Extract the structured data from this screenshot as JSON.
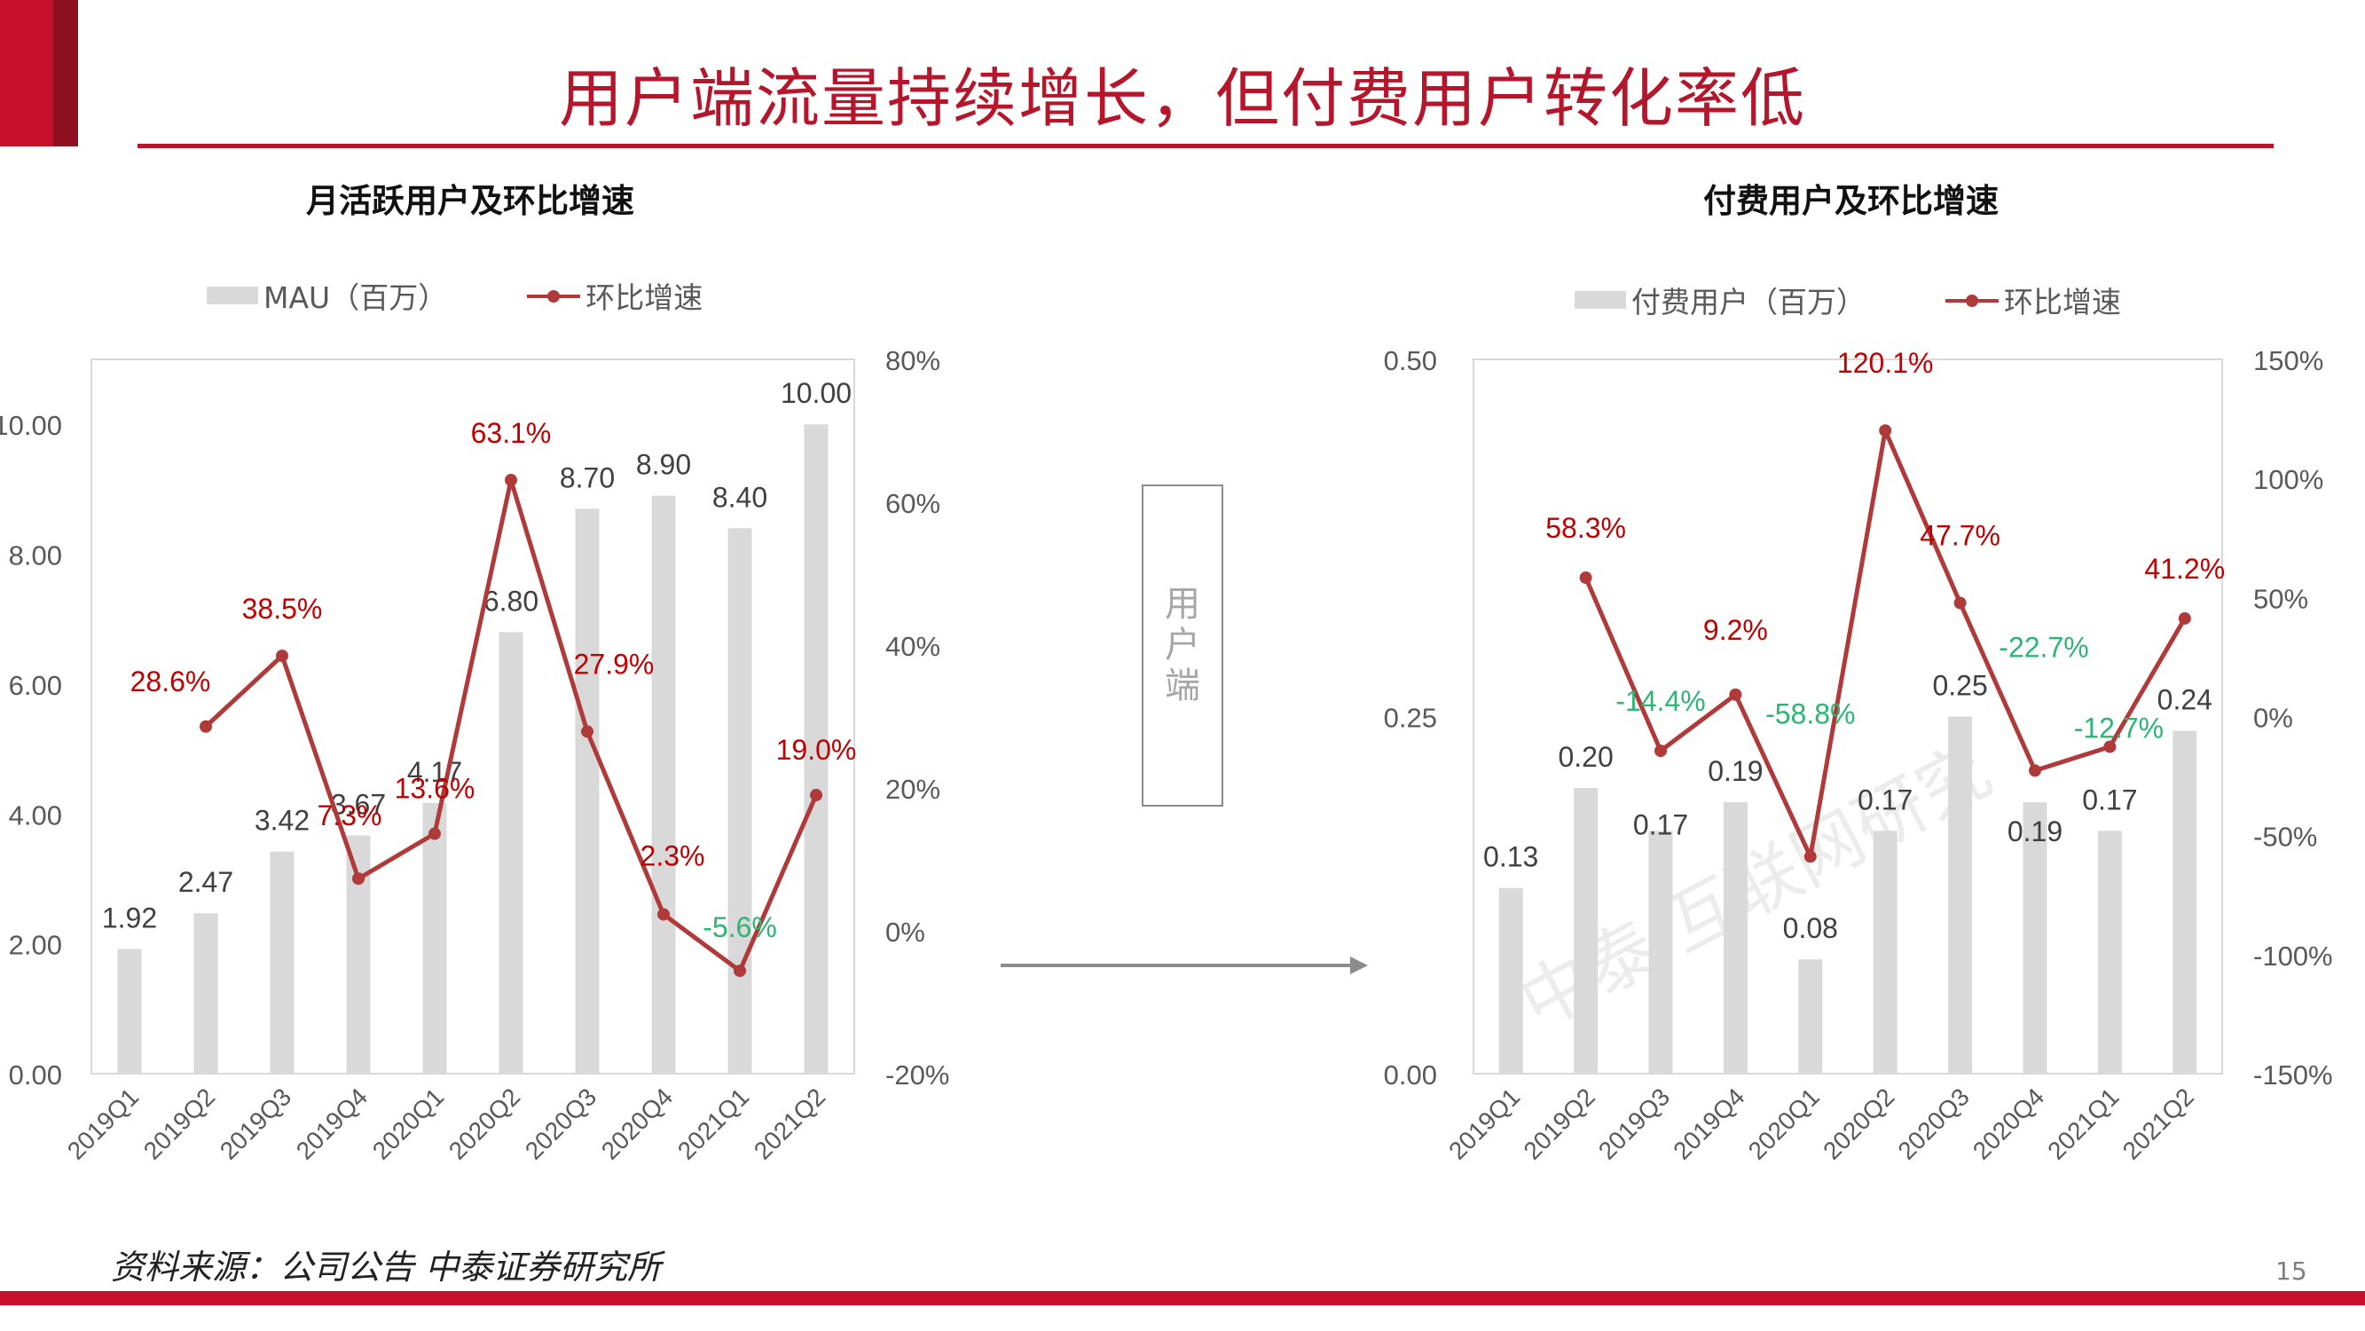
{
  "page": {
    "title": "用户端流量持续增长，但付费用户转化率低",
    "source": "资料来源：公司公告 中泰证券研究所",
    "page_number": "15",
    "center_box_label": "用户端",
    "watermark": "中泰 互联网研究",
    "colors": {
      "accent": "#c8102e",
      "title": "#b5162b",
      "bar": "#d9d9d9",
      "line": "#b03a3a",
      "positive_label": "#c00000",
      "negative_label": "#2bb673"
    }
  },
  "chart_data": [
    {
      "type": "bar+line",
      "title": "月活跃用户及环比增速",
      "legend": {
        "bar": "MAU（百万）",
        "line": "环比增速",
        "placement": "top"
      },
      "categories": [
        "2019Q1",
        "2019Q2",
        "2019Q3",
        "2019Q4",
        "2020Q1",
        "2020Q2",
        "2020Q3",
        "2020Q4",
        "2021Q1",
        "2021Q2"
      ],
      "bar_values": [
        1.92,
        2.47,
        3.42,
        3.67,
        4.17,
        6.8,
        8.7,
        8.9,
        8.4,
        10.0
      ],
      "bar_labels": [
        "1.92",
        "2.47",
        "3.42",
        "3.67",
        "4.17",
        "6.80",
        "8.70",
        "8.90",
        "8.40",
        "10.00"
      ],
      "line_values": [
        null,
        28.6,
        38.5,
        7.3,
        13.6,
        63.1,
        27.9,
        2.3,
        -5.6,
        19.0
      ],
      "line_labels": [
        "",
        "28.6%",
        "38.5%",
        "7.3%",
        "13.6%",
        "63.1%",
        "27.9%",
        "2.3%",
        "-5.6%",
        "19.0%"
      ],
      "y_left": {
        "ticks": [
          "0.00",
          "2.00",
          "4.00",
          "6.00",
          "8.00",
          "10.00"
        ],
        "range": [
          0,
          11
        ]
      },
      "y_right": {
        "ticks": [
          "-20%",
          "0%",
          "20%",
          "40%",
          "60%",
          "80%"
        ],
        "range": [
          -20,
          80
        ]
      }
    },
    {
      "type": "bar+line",
      "title": "付费用户及环比增速",
      "legend": {
        "bar": "付费用户（百万）",
        "line": "环比增速",
        "placement": "top"
      },
      "categories": [
        "2019Q1",
        "2019Q2",
        "2019Q3",
        "2019Q4",
        "2020Q1",
        "2020Q2",
        "2020Q3",
        "2020Q4",
        "2021Q1",
        "2021Q2"
      ],
      "bar_values": [
        0.13,
        0.2,
        0.17,
        0.19,
        0.08,
        0.17,
        0.25,
        0.19,
        0.17,
        0.24
      ],
      "bar_labels": [
        "0.13",
        "0.20",
        "0.17",
        "0.19",
        "0.08",
        "0.17",
        "0.25",
        "0.19",
        "0.17",
        "0.24"
      ],
      "line_values": [
        null,
        58.3,
        -14.4,
        9.2,
        -58.8,
        120.1,
        47.7,
        -22.7,
        -12.7,
        41.2
      ],
      "line_labels": [
        "",
        "58.3%",
        "-14.4%",
        "9.2%",
        "-58.8%",
        "120.1%",
        "47.7%",
        "-22.7%",
        "-12.7%",
        "41.2%"
      ],
      "y_left": {
        "ticks": [
          "0.00",
          "0.25",
          "0.50"
        ],
        "range": [
          0,
          0.5
        ]
      },
      "y_right": {
        "ticks": [
          "-150%",
          "-100%",
          "-50%",
          "0%",
          "50%",
          "100%",
          "150%"
        ],
        "range": [
          -150,
          150
        ]
      }
    }
  ]
}
